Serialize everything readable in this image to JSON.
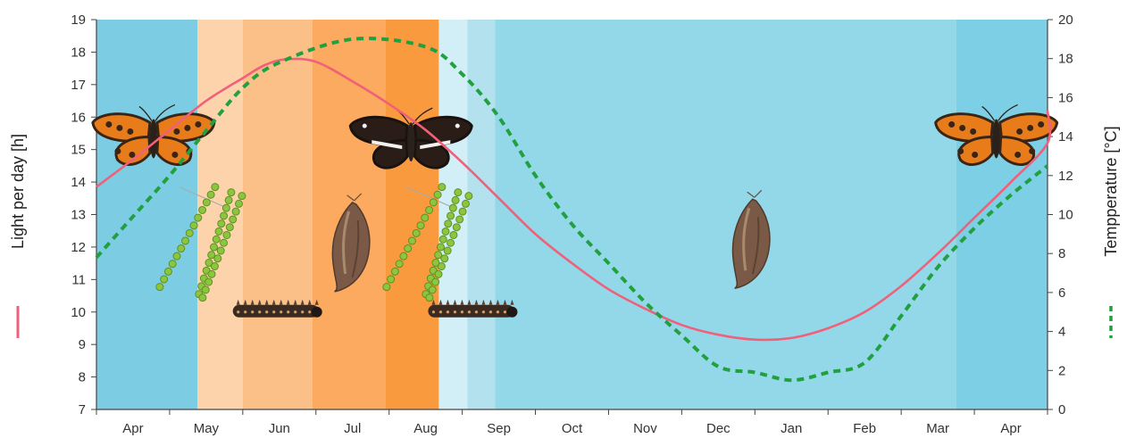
{
  "chart_data": {
    "type": "line",
    "y_left": {
      "label": "Light per day [h]",
      "range": [
        7,
        19
      ],
      "ticks": [
        "7",
        "8",
        "9",
        "10",
        "11",
        "12",
        "13",
        "14",
        "15",
        "16",
        "17",
        "18",
        "19"
      ]
    },
    "y_right": {
      "label": "Tempperature [°C]",
      "range": [
        0,
        20
      ],
      "ticks": [
        "0",
        "2",
        "4",
        "6",
        "8",
        "10",
        "12",
        "14",
        "16",
        "18",
        "20"
      ]
    },
    "x": {
      "range": [
        0,
        13
      ],
      "tick_positions": [
        0.5,
        1.5,
        2.5,
        3.5,
        4.5,
        5.5,
        6.5,
        7.5,
        8.5,
        9.5,
        10.5,
        11.5,
        12.5
      ],
      "tick_labels": [
        "Apr",
        "May",
        "Jun",
        "Jul",
        "Aug",
        "Sep",
        "Oct",
        "Nov",
        "Dec",
        "Jan",
        "Feb",
        "Mar",
        "Apr"
      ]
    },
    "series": [
      {
        "key": "light",
        "axis": "left",
        "color": "#f0607a",
        "style": "solid",
        "points": [
          [
            0,
            13.85
          ],
          [
            0.5,
            14.7
          ],
          [
            1,
            15.6
          ],
          [
            1.5,
            16.5
          ],
          [
            2,
            17.2
          ],
          [
            2.3,
            17.6
          ],
          [
            2.6,
            17.78
          ],
          [
            3,
            17.7
          ],
          [
            3.5,
            17.1
          ],
          [
            4,
            16.4
          ],
          [
            4.5,
            15.6
          ],
          [
            5,
            14.6
          ],
          [
            5.5,
            13.5
          ],
          [
            6,
            12.4
          ],
          [
            6.5,
            11.5
          ],
          [
            7,
            10.7
          ],
          [
            7.5,
            10.1
          ],
          [
            8,
            9.6
          ],
          [
            8.5,
            9.3
          ],
          [
            9,
            9.15
          ],
          [
            9.5,
            9.2
          ],
          [
            10,
            9.5
          ],
          [
            10.5,
            10.0
          ],
          [
            11,
            10.8
          ],
          [
            11.5,
            11.8
          ],
          [
            12,
            12.9
          ],
          [
            12.5,
            14.0
          ],
          [
            13,
            15.2
          ],
          [
            13.3,
            16.2
          ]
        ]
      },
      {
        "key": "temperature",
        "axis": "right",
        "color": "#22a040",
        "style": "dashed",
        "points": [
          [
            0,
            7.8
          ],
          [
            0.5,
            9.9
          ],
          [
            1,
            12.0
          ],
          [
            1.5,
            14.3
          ],
          [
            2,
            16.5
          ],
          [
            2.5,
            17.8
          ],
          [
            3.5,
            19.0
          ],
          [
            4.5,
            18.6
          ],
          [
            5,
            17.2
          ],
          [
            5.5,
            15.0
          ],
          [
            6,
            12.0
          ],
          [
            6.5,
            9.5
          ],
          [
            7,
            7.5
          ],
          [
            7.5,
            5.5
          ],
          [
            8,
            3.8
          ],
          [
            8.5,
            2.2
          ],
          [
            9,
            1.9
          ],
          [
            9.5,
            1.5
          ],
          [
            10,
            1.9
          ],
          [
            10.5,
            2.4
          ],
          [
            11,
            4.8
          ],
          [
            11.5,
            7.3
          ],
          [
            12,
            9.3
          ],
          [
            12.5,
            11.0
          ],
          [
            13.3,
            12.5
          ]
        ]
      }
    ],
    "background_bands": [
      {
        "x0": 0,
        "x1": 1.38,
        "color": "#7ccde3"
      },
      {
        "x0": 1.38,
        "x1": 2.0,
        "color": "#fdd3ab"
      },
      {
        "x0": 2.0,
        "x1": 2.95,
        "color": "#fbbf88"
      },
      {
        "x0": 2.95,
        "x1": 3.95,
        "color": "#fbaa5f"
      },
      {
        "x0": 3.95,
        "x1": 4.68,
        "color": "#f99a3e"
      },
      {
        "x0": 4.68,
        "x1": 5.07,
        "color": "#d2eef6"
      },
      {
        "x0": 5.07,
        "x1": 5.45,
        "color": "#b4e1ee"
      },
      {
        "x0": 5.45,
        "x1": 11.75,
        "color": "#93d8e8"
      },
      {
        "x0": 11.75,
        "x1": 13.3,
        "color": "#7ccfe4"
      }
    ],
    "illustrations": [
      {
        "type": "butterfly",
        "variant": "orange",
        "x": 0.78,
        "y": 15.5
      },
      {
        "type": "eggs",
        "x": 1.5,
        "y": 12.2
      },
      {
        "type": "caterpillar",
        "x": 2.45,
        "y": 10.0
      },
      {
        "type": "pupa",
        "x": 3.45,
        "y": 12.0
      },
      {
        "type": "butterfly",
        "variant": "dark",
        "x": 4.3,
        "y": 15.4
      },
      {
        "type": "eggs",
        "x": 4.6,
        "y": 12.2
      },
      {
        "type": "caterpillar",
        "x": 5.12,
        "y": 10.0
      },
      {
        "type": "pupa",
        "x": 8.92,
        "y": 12.1
      },
      {
        "type": "butterfly",
        "variant": "orange",
        "x": 12.3,
        "y": 15.5
      }
    ]
  }
}
